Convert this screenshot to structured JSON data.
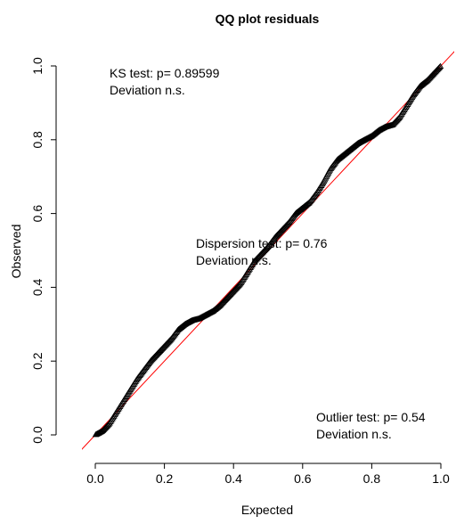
{
  "chart_data": {
    "type": "scatter",
    "title": "QQ plot residuals",
    "xlabel": "Expected",
    "ylabel": "Observed",
    "xlim": [
      0,
      1
    ],
    "ylim": [
      0,
      1
    ],
    "xticks": [
      "0.0",
      "0.2",
      "0.4",
      "0.6",
      "0.8",
      "1.0"
    ],
    "yticks": [
      "0.0",
      "0.2",
      "0.4",
      "0.6",
      "0.8",
      "1.0"
    ],
    "reference_line": {
      "slope": 1,
      "intercept": 0,
      "color": "#ff0000"
    },
    "point_color": "#000000",
    "grid": false,
    "points": {
      "x": [
        0.0,
        0.02,
        0.04,
        0.06,
        0.08,
        0.1,
        0.12,
        0.14,
        0.16,
        0.18,
        0.2,
        0.22,
        0.24,
        0.26,
        0.28,
        0.3,
        0.32,
        0.34,
        0.36,
        0.38,
        0.4,
        0.42,
        0.44,
        0.46,
        0.48,
        0.5,
        0.52,
        0.54,
        0.56,
        0.58,
        0.6,
        0.62,
        0.64,
        0.66,
        0.68,
        0.7,
        0.72,
        0.74,
        0.76,
        0.78,
        0.8,
        0.82,
        0.84,
        0.86,
        0.88,
        0.9,
        0.92,
        0.94,
        0.96,
        0.98,
        1.0
      ],
      "y": [
        0.0,
        0.01,
        0.03,
        0.06,
        0.09,
        0.12,
        0.15,
        0.175,
        0.2,
        0.22,
        0.24,
        0.26,
        0.285,
        0.3,
        0.31,
        0.315,
        0.325,
        0.335,
        0.35,
        0.37,
        0.39,
        0.41,
        0.44,
        0.47,
        0.49,
        0.51,
        0.535,
        0.555,
        0.575,
        0.6,
        0.615,
        0.63,
        0.655,
        0.685,
        0.72,
        0.745,
        0.76,
        0.775,
        0.79,
        0.8,
        0.81,
        0.825,
        0.835,
        0.84,
        0.86,
        0.89,
        0.92,
        0.945,
        0.96,
        0.98,
        1.0
      ]
    },
    "annotations": [
      {
        "lines": [
          "KS test: p= 0.89599",
          "Deviation  n.s."
        ],
        "position": "top-left"
      },
      {
        "lines": [
          "Dispersion test: p= 0.76",
          "Deviation  n.s."
        ],
        "position": "center"
      },
      {
        "lines": [
          "Outlier test: p= 0.54",
          "Deviation  n.s."
        ],
        "position": "bottom-right"
      }
    ]
  }
}
